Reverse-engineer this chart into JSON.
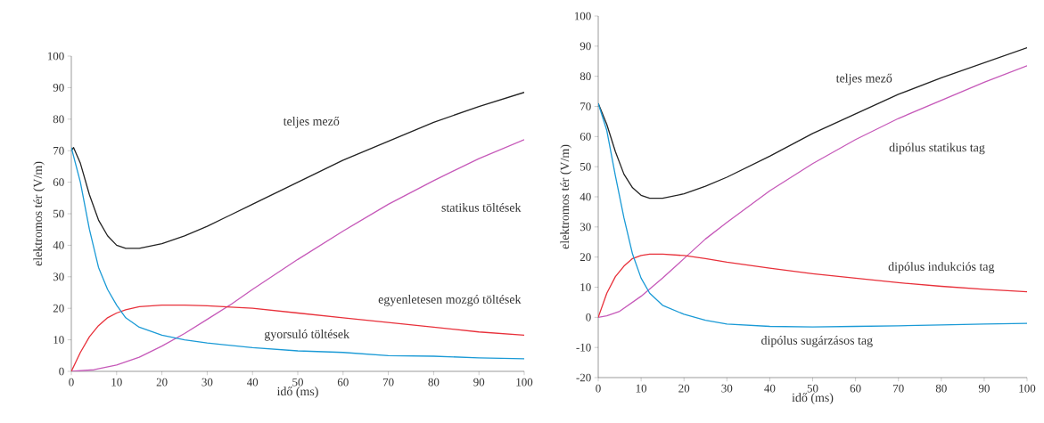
{
  "chart_data": [
    {
      "type": "line",
      "xlabel": "idő (ms)",
      "ylabel": "elektromos tér (V/m)",
      "xlim": [
        0,
        100
      ],
      "ylim": [
        0,
        100
      ],
      "xticks": [
        0,
        10,
        20,
        30,
        40,
        50,
        60,
        70,
        80,
        90,
        100
      ],
      "yticks": [
        0,
        10,
        20,
        30,
        40,
        50,
        60,
        70,
        80,
        90,
        100
      ],
      "grid": false,
      "legend": false,
      "series": [
        {
          "name": "teljes mező",
          "color": "#222222",
          "x": [
            0,
            0.5,
            2,
            4,
            6,
            8,
            10,
            12,
            15,
            20,
            25,
            30,
            40,
            50,
            60,
            70,
            80,
            90,
            100
          ],
          "values": [
            70,
            71,
            66,
            56,
            48,
            43,
            40,
            39,
            39,
            40.5,
            43,
            46,
            53,
            60,
            67,
            73,
            79,
            84,
            88.5
          ]
        },
        {
          "name": "statikus töltések",
          "color": "#c659b9",
          "x": [
            0,
            5,
            10,
            15,
            20,
            25,
            30,
            35,
            40,
            50,
            60,
            70,
            80,
            90,
            100
          ],
          "values": [
            0,
            0.5,
            2,
            4.5,
            8,
            12,
            16.5,
            21,
            26,
            35.5,
            44.5,
            53,
            60.5,
            67.5,
            73.5
          ]
        },
        {
          "name": "egyenletesen mozgó töltések",
          "color": "#e8303a",
          "x": [
            0,
            2,
            4,
            6,
            8,
            10,
            12,
            15,
            20,
            25,
            30,
            40,
            50,
            60,
            70,
            80,
            90,
            100
          ],
          "values": [
            0,
            6,
            11,
            14.5,
            17,
            18.5,
            19.5,
            20.5,
            21,
            21,
            20.8,
            20,
            18.5,
            17,
            15.5,
            14,
            12.5,
            11.5
          ]
        },
        {
          "name": "gyorsuló töltések",
          "color": "#1a9ad6",
          "x": [
            0,
            2,
            4,
            6,
            8,
            10,
            12,
            15,
            20,
            25,
            30,
            40,
            50,
            60,
            70,
            80,
            90,
            100
          ],
          "values": [
            71,
            60,
            45,
            33,
            26,
            21,
            17,
            14,
            11.5,
            10,
            9,
            7.5,
            6.5,
            6,
            5,
            4.8,
            4.3,
            4
          ]
        }
      ]
    },
    {
      "type": "line",
      "xlabel": "idő (ms)",
      "ylabel": "elektromos tér (V/m)",
      "xlim": [
        0,
        100
      ],
      "ylim": [
        -20,
        100
      ],
      "xticks": [
        0,
        10,
        20,
        30,
        40,
        50,
        60,
        70,
        80,
        90,
        100
      ],
      "yticks": [
        -20,
        -10,
        0,
        10,
        20,
        30,
        40,
        50,
        60,
        70,
        80,
        90,
        100
      ],
      "grid": false,
      "legend": false,
      "series": [
        {
          "name": "teljes mező",
          "color": "#222222",
          "x": [
            0,
            2,
            4,
            6,
            8,
            10,
            12,
            15,
            20,
            25,
            30,
            40,
            50,
            60,
            70,
            80,
            90,
            100
          ],
          "values": [
            71,
            64,
            55,
            47.5,
            43,
            40.5,
            39.5,
            39.5,
            41,
            43.5,
            46.5,
            53.5,
            61,
            67.5,
            74,
            79.5,
            84.5,
            89.5
          ]
        },
        {
          "name": "dipólus statikus tag",
          "color": "#c659b9",
          "x": [
            0,
            2,
            5,
            10,
            15,
            20,
            25,
            30,
            40,
            50,
            60,
            70,
            80,
            90,
            100
          ],
          "values": [
            0,
            0.5,
            2,
            7,
            13,
            19.5,
            26,
            31.5,
            42,
            51,
            59,
            66,
            72,
            78,
            83.5
          ]
        },
        {
          "name": "dipólus indukciós tag",
          "color": "#e8303a",
          "x": [
            0,
            2,
            4,
            6,
            8,
            10,
            12,
            15,
            20,
            25,
            30,
            40,
            50,
            60,
            70,
            80,
            90,
            100
          ],
          "values": [
            0,
            8,
            13.5,
            17,
            19.5,
            20.5,
            21,
            21,
            20.5,
            19.5,
            18.3,
            16.3,
            14.5,
            13,
            11.5,
            10.3,
            9.3,
            8.5
          ]
        },
        {
          "name": "dipólus sugárzásos tag",
          "color": "#1a9ad6",
          "x": [
            0,
            2,
            4,
            6,
            8,
            10,
            12,
            15,
            20,
            25,
            30,
            40,
            50,
            60,
            70,
            80,
            90,
            100
          ],
          "values": [
            71,
            62,
            47,
            33,
            21,
            13,
            8,
            4,
            1,
            -1,
            -2.2,
            -3,
            -3.2,
            -3,
            -2.8,
            -2.5,
            -2.2,
            -2
          ]
        }
      ]
    }
  ]
}
